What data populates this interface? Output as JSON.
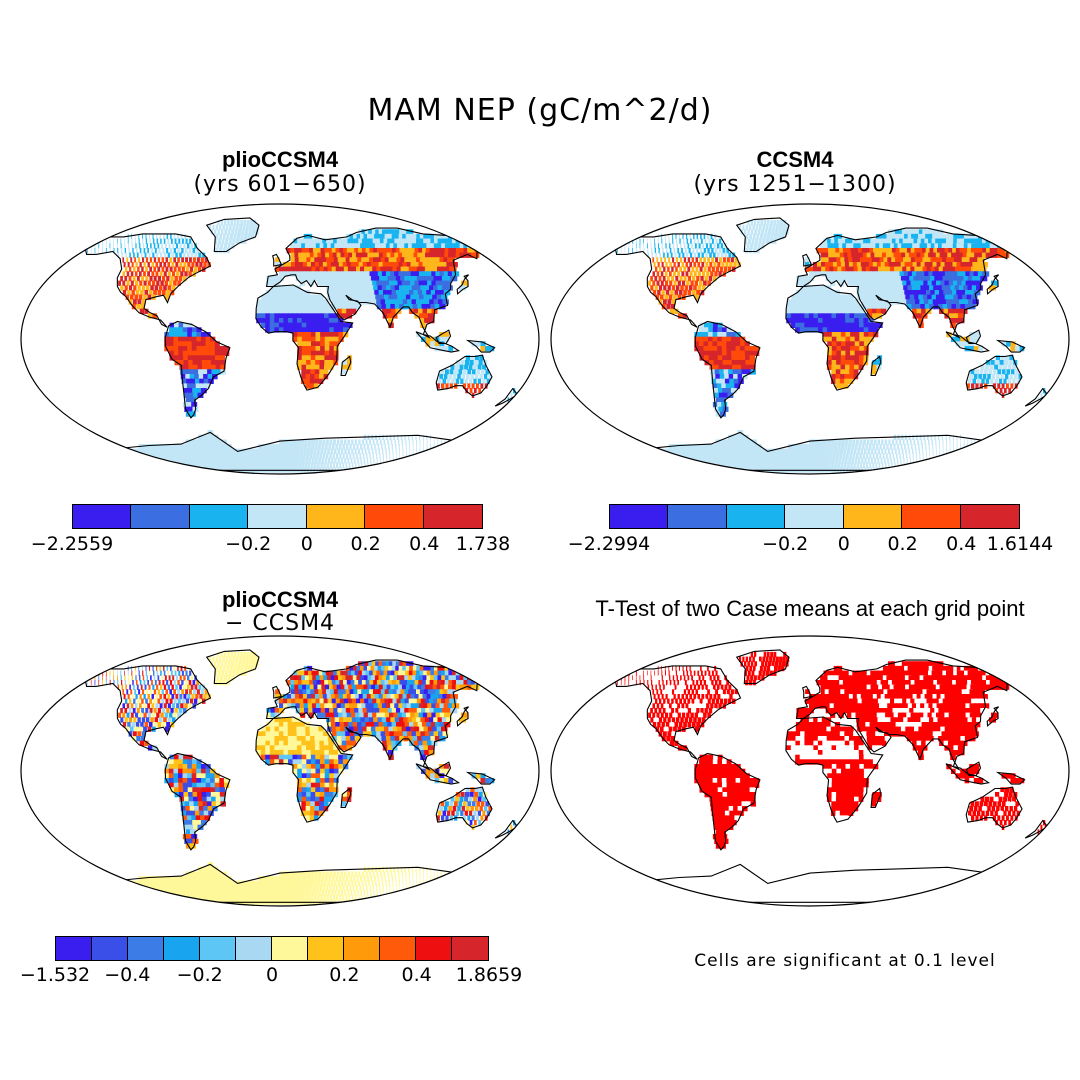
{
  "title": "MAM NEP (gC/m^2/d)",
  "panels": [
    {
      "id": "plio",
      "title": "plioCCSM4",
      "subtitle": "(yrs 601−650)",
      "colorbar": {
        "colors": [
          "#3a1ef0",
          "#3b6ee0",
          "#19b4f0",
          "#c3e6f7",
          "#ffb61a",
          "#ff4a0a",
          "#d7262b"
        ],
        "ticks": [
          "−2.2559",
          "−0.2",
          "0",
          "0.2",
          "0.4",
          "1.738"
        ]
      }
    },
    {
      "id": "ccsm4",
      "title": "CCSM4",
      "subtitle": "(yrs 1251−1300)",
      "colorbar": {
        "colors": [
          "#3a1ef0",
          "#3b6ee0",
          "#19b4f0",
          "#c3e6f7",
          "#ffb61a",
          "#ff4a0a",
          "#d7262b"
        ],
        "ticks": [
          "−2.2994",
          "−0.2",
          "0",
          "0.2",
          "0.4",
          "1.6144"
        ]
      }
    },
    {
      "id": "diff",
      "title": "plioCCSM4",
      "subtitle": "− CCSM4",
      "colorbar": {
        "colors": [
          "#3a1ef0",
          "#3a4ee8",
          "#3b7ce6",
          "#19a4f0",
          "#5ec6f4",
          "#a8d8f2",
          "#fff89a",
          "#ffc21a",
          "#ff9a0a",
          "#ff5a0a",
          "#ee1010",
          "#d7262b"
        ],
        "ticks": [
          "−1.532",
          "−0.4",
          "−0.2",
          "0",
          "0.2",
          "0.4",
          "1.8659"
        ]
      }
    },
    {
      "id": "ttest",
      "title": "T-Test of two Case means at each grid point",
      "note": "Cells are significant at 0.1 level",
      "color": "#ff0000"
    }
  ]
}
